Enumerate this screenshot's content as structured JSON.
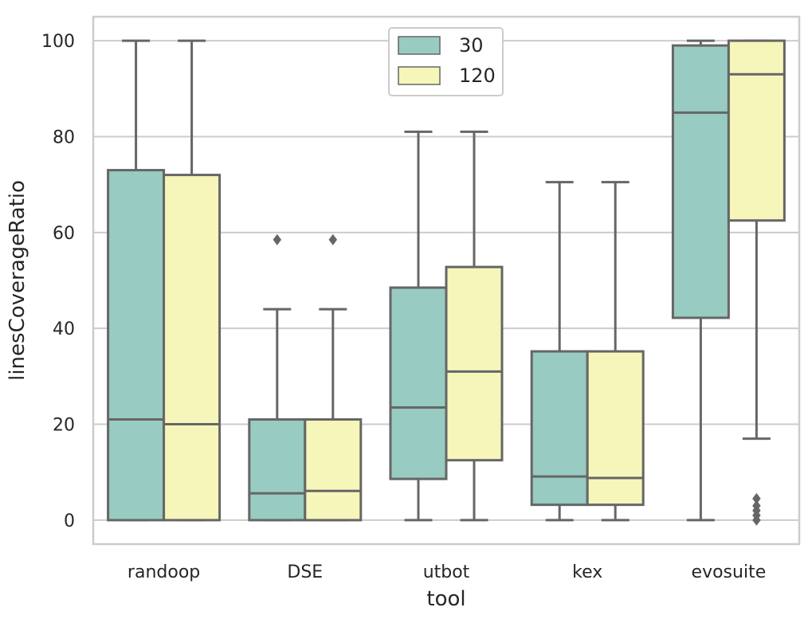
{
  "chart_data": {
    "type": "box",
    "xlabel": "tool",
    "ylabel": "linesCoverageRatio",
    "categories": [
      "randoop",
      "DSE",
      "utbot",
      "kex",
      "evosuite"
    ],
    "ylim": [
      -5,
      105
    ],
    "yticks": [
      0,
      20,
      40,
      60,
      80,
      100
    ],
    "grid": true,
    "legend_position": "top-center",
    "series": [
      {
        "name": "30",
        "color": "#98cbc1",
        "boxes": [
          {
            "whislo": 0,
            "q1": 0,
            "med": 21,
            "q3": 73,
            "whishi": 100,
            "fliers": []
          },
          {
            "whislo": 0,
            "q1": 0,
            "med": 5.6,
            "q3": 21,
            "whishi": 44,
            "fliers": [
              58.5
            ]
          },
          {
            "whislo": 0,
            "q1": 8.6,
            "med": 23.5,
            "q3": 48.5,
            "whishi": 81,
            "fliers": []
          },
          {
            "whislo": 0,
            "q1": 3.2,
            "med": 9.1,
            "q3": 35.2,
            "whishi": 70.5,
            "fliers": []
          },
          {
            "whislo": 0,
            "q1": 42.2,
            "med": 85,
            "q3": 99,
            "whishi": 100,
            "fliers": []
          }
        ]
      },
      {
        "name": "120",
        "color": "#f6f6bb",
        "boxes": [
          {
            "whislo": 0,
            "q1": 0,
            "med": 20,
            "q3": 72,
            "whishi": 100,
            "fliers": []
          },
          {
            "whislo": 0,
            "q1": 0,
            "med": 6.1,
            "q3": 21,
            "whishi": 44,
            "fliers": [
              58.5
            ]
          },
          {
            "whislo": 0,
            "q1": 12.5,
            "med": 31,
            "q3": 52.8,
            "whishi": 81,
            "fliers": []
          },
          {
            "whislo": 0,
            "q1": 3.2,
            "med": 8.8,
            "q3": 35.2,
            "whishi": 70.5,
            "fliers": []
          },
          {
            "whislo": 17,
            "q1": 62.5,
            "med": 93,
            "q3": 100,
            "whishi": 100,
            "fliers": [
              0,
              1,
              2,
              3,
              4.5
            ]
          }
        ]
      }
    ]
  }
}
